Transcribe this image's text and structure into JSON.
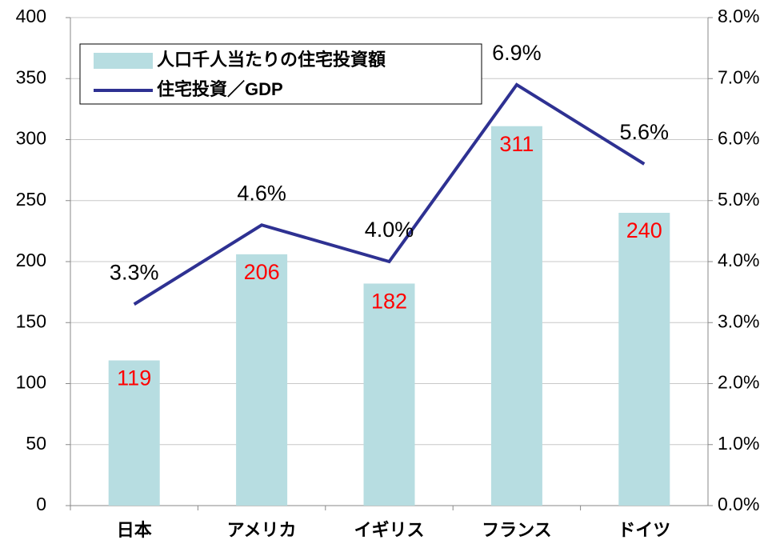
{
  "chart_data": {
    "type": "bar",
    "categories": [
      "日本",
      "アメリカ",
      "イギリス",
      "フランス",
      "ドイツ"
    ],
    "series": [
      {
        "name": "人口千人当たりの住宅投資額",
        "type": "bar",
        "color": "#b7dde1",
        "value_label_color": "#ff0000",
        "values": [
          119,
          206,
          182,
          311,
          240
        ]
      },
      {
        "name": "住宅投資／GDP",
        "type": "line",
        "axis": "y2",
        "color": "#2e3192",
        "value_label_color": "#000000",
        "values": [
          3.3,
          4.6,
          4.0,
          6.9,
          5.6
        ],
        "value_labels": [
          "3.3%",
          "4.6%",
          "4.0%",
          "6.9%",
          "5.6%"
        ]
      }
    ],
    "ylim": [
      0,
      400
    ],
    "yticks": [
      0,
      50,
      100,
      150,
      200,
      250,
      300,
      350,
      400
    ],
    "y2lim": [
      0,
      8
    ],
    "y2ticks": [
      {
        "value": 0,
        "label": "0.0%"
      },
      {
        "value": 1,
        "label": "1.0%"
      },
      {
        "value": 2,
        "label": "2.0%"
      },
      {
        "value": 3,
        "label": "3.0%"
      },
      {
        "value": 4,
        "label": "4.0%"
      },
      {
        "value": 5,
        "label": "5.0%"
      },
      {
        "value": 6,
        "label": "6.0%"
      },
      {
        "value": 7,
        "label": "7.0%"
      },
      {
        "value": 8,
        "label": "8.0%"
      }
    ],
    "grid": true,
    "legend": "upper left"
  }
}
